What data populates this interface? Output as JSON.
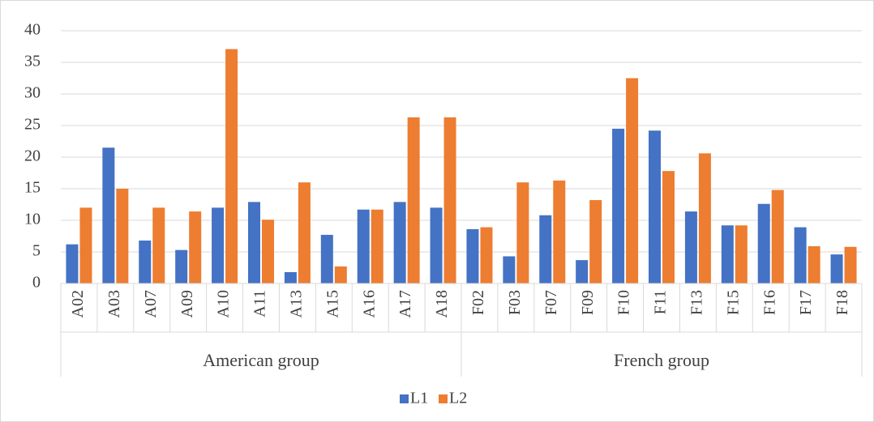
{
  "chart_data": {
    "type": "bar",
    "groups": [
      {
        "name": "American group",
        "categories": [
          "A02",
          "A03",
          "A07",
          "A09",
          "A10",
          "A11",
          "A13",
          "A15",
          "A16",
          "A17",
          "A18"
        ]
      },
      {
        "name": "French group",
        "categories": [
          "F02",
          "F03",
          "F07",
          "F09",
          "F10",
          "F11",
          "F13",
          "F15",
          "F16",
          "F17",
          "F18"
        ]
      }
    ],
    "series": [
      {
        "name": "L1",
        "color": "#4472c4",
        "values": [
          6.2,
          21.5,
          6.8,
          5.3,
          12,
          12.9,
          1.8,
          7.7,
          11.7,
          12.9,
          12,
          8.6,
          4.3,
          10.8,
          3.7,
          24.5,
          24.2,
          11.4,
          9.2,
          12.6,
          8.9,
          4.6
        ]
      },
      {
        "name": "L2",
        "color": "#ed7d31",
        "values": [
          12,
          15,
          12,
          11.4,
          37.1,
          10.1,
          16,
          2.7,
          11.7,
          26.3,
          26.3,
          8.9,
          16,
          16.3,
          13.2,
          32.5,
          17.8,
          20.6,
          9.2,
          14.8,
          5.9,
          5.8
        ]
      }
    ],
    "ylim": [
      0,
      40
    ],
    "yticks": [
      0,
      5,
      10,
      15,
      20,
      25,
      30,
      35,
      40
    ],
    "grid": true,
    "legend": "bottom"
  }
}
